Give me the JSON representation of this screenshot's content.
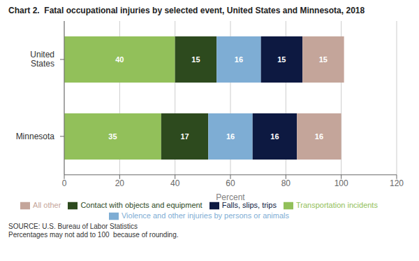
{
  "chart_data": {
    "type": "bar",
    "orientation": "horizontal",
    "stacked": true,
    "title": "Chart 2.  Fatal occupational injuries by selected event, United States and Minnesota, 2018",
    "categories": [
      "United\nStates",
      "Minnesota"
    ],
    "series": [
      {
        "name": "Transportation incidents",
        "color": "#92c05a",
        "values": [
          40,
          35
        ]
      },
      {
        "name": "Contact with objects and equipment",
        "color": "#2d4a1e",
        "values": [
          15,
          17
        ]
      },
      {
        "name": "Violence and other injuries by persons or animals",
        "color": "#7eadd4",
        "values": [
          16,
          16
        ]
      },
      {
        "name": "Falls, slips, trips",
        "color": "#0d1941",
        "values": [
          15,
          16
        ]
      },
      {
        "name": "All other",
        "color": "#c4a59a",
        "values": [
          15,
          16
        ]
      }
    ],
    "xlabel": "Percent",
    "xlim": [
      0,
      120
    ],
    "xticks": [
      0,
      20,
      40,
      60,
      80,
      100,
      120
    ],
    "grid": true,
    "data_labels": true,
    "legend": "bottom",
    "annotations": [
      "SOURCE: U.S. Bureau of Labor Statistics\nPercentages may not add to 100  because of rounding."
    ]
  }
}
